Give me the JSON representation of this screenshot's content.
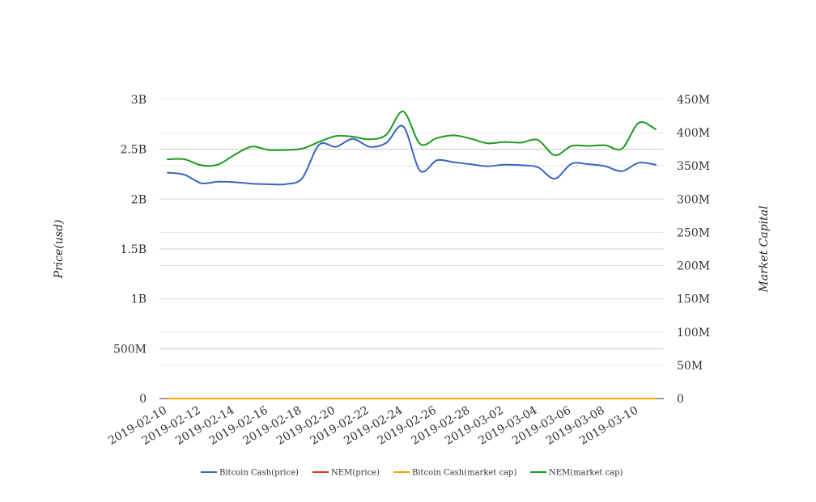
{
  "chart_data": {
    "type": "line",
    "title": "",
    "xlabel": "",
    "ylabel_left": "Price(usd)",
    "ylabel_right": "Market Capital",
    "ylim_left": [
      0,
      3000000000
    ],
    "ylim_right": [
      0,
      450000000
    ],
    "left_ticks": [
      "0",
      "500M",
      "1B",
      "1.5B",
      "2B",
      "2.5B",
      "3B"
    ],
    "right_ticks": [
      "0",
      "50M",
      "100M",
      "150M",
      "200M",
      "250M",
      "300M",
      "350M",
      "400M",
      "450M"
    ],
    "x_tick_labels": [
      "2019-02-10",
      "2019-02-12",
      "2019-02-14",
      "2019-02-16",
      "2019-02-18",
      "2019-02-20",
      "2019-02-22",
      "2019-02-24",
      "2019-02-26",
      "2019-02-28",
      "2019-03-02",
      "2019-03-04",
      "2019-03-06",
      "2019-03-08",
      "2019-03-10"
    ],
    "x": [
      "2019-02-10",
      "2019-02-11",
      "2019-02-12",
      "2019-02-13",
      "2019-02-14",
      "2019-02-15",
      "2019-02-16",
      "2019-02-17",
      "2019-02-18",
      "2019-02-19",
      "2019-02-20",
      "2019-02-21",
      "2019-02-22",
      "2019-02-23",
      "2019-02-24",
      "2019-02-25",
      "2019-02-26",
      "2019-02-27",
      "2019-02-28",
      "2019-03-01",
      "2019-03-02",
      "2019-03-03",
      "2019-03-04",
      "2019-03-05",
      "2019-03-06",
      "2019-03-07",
      "2019-03-08",
      "2019-03-09",
      "2019-03-10",
      "2019-03-11"
    ],
    "legend_position": "bottom",
    "grid": true,
    "series": [
      {
        "name": "Bitcoin Cash(price)",
        "axis": "left",
        "color": "#3b66bc",
        "values": [
          2265000000,
          2245000000,
          2160000000,
          2175000000,
          2170000000,
          2155000000,
          2150000000,
          2150000000,
          2210000000,
          2545000000,
          2525000000,
          2605000000,
          2525000000,
          2565000000,
          2730000000,
          2285000000,
          2390000000,
          2370000000,
          2350000000,
          2330000000,
          2345000000,
          2340000000,
          2320000000,
          2205000000,
          2355000000,
          2350000000,
          2330000000,
          2280000000,
          2365000000,
          2345000000
        ]
      },
      {
        "name": "NEM(price)",
        "axis": "left",
        "color": "#dc3912",
        "values": [
          0,
          0,
          0,
          0,
          0,
          0,
          0,
          0,
          0,
          0,
          0,
          0,
          0,
          0,
          0,
          0,
          0,
          0,
          0,
          0,
          0,
          0,
          0,
          0,
          0,
          0,
          0,
          0,
          0,
          0
        ]
      },
      {
        "name": "Bitcoin Cash(market cap)",
        "axis": "right",
        "color": "#f4a300",
        "values": [
          0,
          0,
          0,
          0,
          0,
          0,
          0,
          0,
          0,
          0,
          0,
          0,
          0,
          0,
          0,
          0,
          0,
          0,
          0,
          0,
          0,
          0,
          0,
          0,
          0,
          0,
          0,
          0,
          0,
          0
        ]
      },
      {
        "name": "NEM(market cap)",
        "axis": "right",
        "color": "#1e9a1e",
        "values": [
          360000000,
          360000000,
          351000000,
          352000000,
          367000000,
          379000000,
          374000000,
          374000000,
          376000000,
          386000000,
          395000000,
          394000000,
          390000000,
          397000000,
          432000000,
          383000000,
          392000000,
          396000000,
          391000000,
          384000000,
          386000000,
          385000000,
          389000000,
          366000000,
          380000000,
          380000000,
          381000000,
          376000000,
          415000000,
          405000000
        ]
      }
    ]
  }
}
